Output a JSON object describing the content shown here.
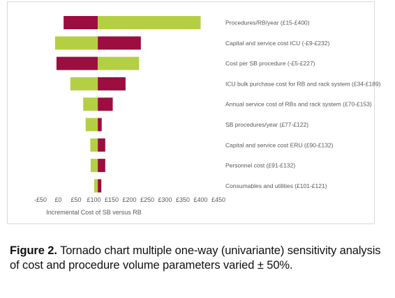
{
  "chart_data": {
    "type": "tornado",
    "base_value": 111,
    "xlabel": "Incremental Cost of SB versus RB",
    "xlim": [
      -50,
      450
    ],
    "x_ticks": [
      "-£50",
      "£0",
      "£50",
      "£100",
      "£150",
      "£200",
      "£250",
      "£300",
      "£350",
      "£400",
      "£450"
    ],
    "colors": {
      "low_side": "#b5cf45",
      "high_side": "#9b0e3f"
    },
    "categories": [
      "Procedures/RB/year (£15-£400)",
      "Capital and service cost ICU (-£9-£232)",
      "Cost per SB procedure (-£5-£227)",
      "ICU bulk purchase cost for RB and rack system (£34-£189)",
      "Annual service cost of RBs and rack system (£70-£153)",
      "SB procedures/year (£77-£122)",
      "Capital and service cost ERU (£90-£132)",
      "Personnel cost (£91-£132)",
      "Consumables and utilities (£101-£121)"
    ],
    "left_bars": [
      {
        "value": 15,
        "color": "#9b0e3f"
      },
      {
        "value": -9,
        "color": "#b5cf45"
      },
      {
        "value": -5,
        "color": "#9b0e3f"
      },
      {
        "value": 34,
        "color": "#b5cf45"
      },
      {
        "value": 70,
        "color": "#b5cf45"
      },
      {
        "value": 77,
        "color": "#b5cf45"
      },
      {
        "value": 90,
        "color": "#b5cf45"
      },
      {
        "value": 91,
        "color": "#b5cf45"
      },
      {
        "value": 101,
        "color": "#b5cf45"
      }
    ],
    "right_bars": [
      {
        "value": 400,
        "color": "#b5cf45"
      },
      {
        "value": 232,
        "color": "#9b0e3f"
      },
      {
        "value": 227,
        "color": "#b5cf45"
      },
      {
        "value": 189,
        "color": "#9b0e3f"
      },
      {
        "value": 153,
        "color": "#9b0e3f"
      },
      {
        "value": 122,
        "color": "#9b0e3f"
      },
      {
        "value": 132,
        "color": "#9b0e3f"
      },
      {
        "value": 132,
        "color": "#9b0e3f"
      },
      {
        "value": 121,
        "color": "#9b0e3f"
      }
    ]
  },
  "caption": {
    "label": "Figure 2.",
    "text": "Tornado chart multiple one-way (univariante) sensitivity analysis of cost and procedure volume parameters varied ± 50%."
  }
}
